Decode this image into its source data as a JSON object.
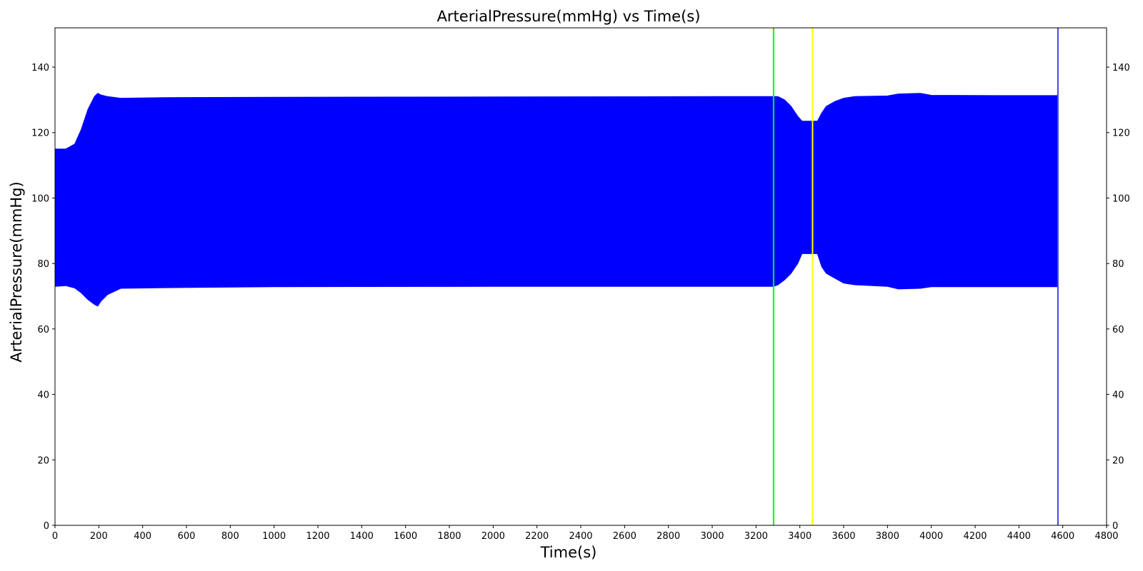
{
  "chart_data": {
    "type": "area",
    "title": "ArterialPressure(mmHg) vs Time(s)",
    "xlabel": "Time(s)",
    "ylabel": "ArterialPressure(mmHg)",
    "xlim": [
      0,
      4800
    ],
    "ylim": [
      0,
      152
    ],
    "xticks": [
      0,
      200,
      400,
      600,
      800,
      1000,
      1200,
      1400,
      1600,
      1800,
      2000,
      2200,
      2400,
      2600,
      2800,
      3000,
      3200,
      3400,
      3600,
      3800,
      4000,
      4200,
      4400,
      4600,
      4800
    ],
    "yticks": [
      0,
      20,
      40,
      60,
      80,
      100,
      120,
      140
    ],
    "right_axis": true,
    "grid": false,
    "series": [
      {
        "color": "#0000ff",
        "x": [
          0,
          50,
          90,
          120,
          150,
          180,
          195,
          210,
          240,
          300,
          500,
          1000,
          2000,
          3000,
          3240,
          3280,
          3300,
          3330,
          3360,
          3390,
          3410,
          3420,
          3450,
          3460,
          3480,
          3500,
          3520,
          3560,
          3600,
          3650,
          3800,
          3850,
          3950,
          4000,
          4300,
          4575
        ],
        "upper": [
          115,
          115,
          116.5,
          121,
          127,
          131,
          132,
          131.5,
          131,
          130.5,
          130.7,
          130.8,
          130.9,
          131,
          131,
          131,
          131,
          130,
          128,
          125,
          123.5,
          123.5,
          123.5,
          123.5,
          123.5,
          126,
          128,
          129.5,
          130.5,
          131,
          131.2,
          131.8,
          132,
          131.4,
          131.3,
          131.3
        ],
        "lower": [
          73,
          73.2,
          72.5,
          71,
          69,
          67.5,
          67,
          68.5,
          70.5,
          72.4,
          72.6,
          72.9,
          73,
          73,
          73,
          73,
          73.5,
          75,
          77,
          80,
          83,
          83,
          83,
          83,
          83,
          79,
          77,
          75.5,
          74,
          73.5,
          73,
          72.2,
          72.4,
          72.9,
          72.9,
          72.9
        ]
      }
    ],
    "vlines": [
      {
        "x": 3280,
        "color": "#00ff00"
      },
      {
        "x": 3458,
        "color": "#ffff00"
      },
      {
        "x": 4578,
        "color": "#4444ee"
      }
    ]
  }
}
